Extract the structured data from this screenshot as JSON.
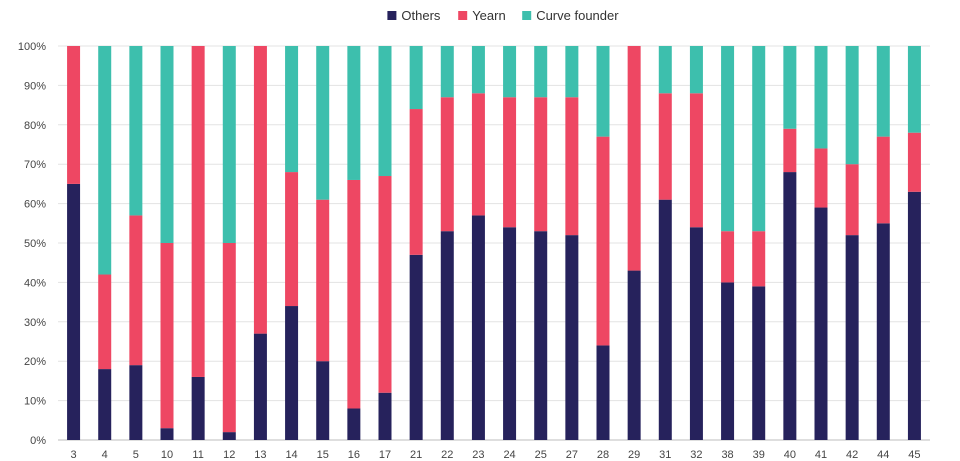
{
  "chart_data": {
    "type": "bar",
    "stacked": true,
    "normalized": true,
    "categories": [
      "3",
      "4",
      "5",
      "10",
      "11",
      "12",
      "13",
      "14",
      "15",
      "16",
      "17",
      "21",
      "22",
      "23",
      "24",
      "25",
      "27",
      "28",
      "29",
      "31",
      "32",
      "38",
      "39",
      "40",
      "41",
      "42",
      "44",
      "45"
    ],
    "series": [
      {
        "name": "Others",
        "color": "#26225c",
        "values": [
          65,
          18,
          19,
          3,
          16,
          2,
          27,
          34,
          20,
          8,
          12,
          47,
          53,
          57,
          54,
          53,
          52,
          24,
          43,
          61,
          54,
          40,
          39,
          68,
          59,
          52,
          55,
          63
        ]
      },
      {
        "name": "Yearn",
        "color": "#ee4763",
        "values": [
          35,
          24,
          38,
          47,
          84,
          48,
          73,
          34,
          41,
          58,
          55,
          37,
          34,
          31,
          33,
          34,
          35,
          53,
          57,
          27,
          34,
          13,
          14,
          11,
          15,
          18,
          22,
          15
        ]
      },
      {
        "name": "Curve founder",
        "color": "#3dbfad",
        "values": [
          0,
          58,
          43,
          50,
          0,
          50,
          0,
          32,
          39,
          34,
          33,
          16,
          13,
          12,
          13,
          13,
          13,
          23,
          0,
          12,
          12,
          47,
          47,
          21,
          26,
          30,
          23,
          22
        ]
      }
    ],
    "ylim": [
      0,
      100
    ],
    "y_ticks": [
      "0%",
      "10%",
      "20%",
      "30%",
      "40%",
      "50%",
      "60%",
      "70%",
      "80%",
      "90%",
      "100%"
    ],
    "y_tick_values": [
      0,
      10,
      20,
      30,
      40,
      50,
      60,
      70,
      80,
      90,
      100
    ],
    "grid": "horizontal",
    "legend_position": "top-center"
  }
}
